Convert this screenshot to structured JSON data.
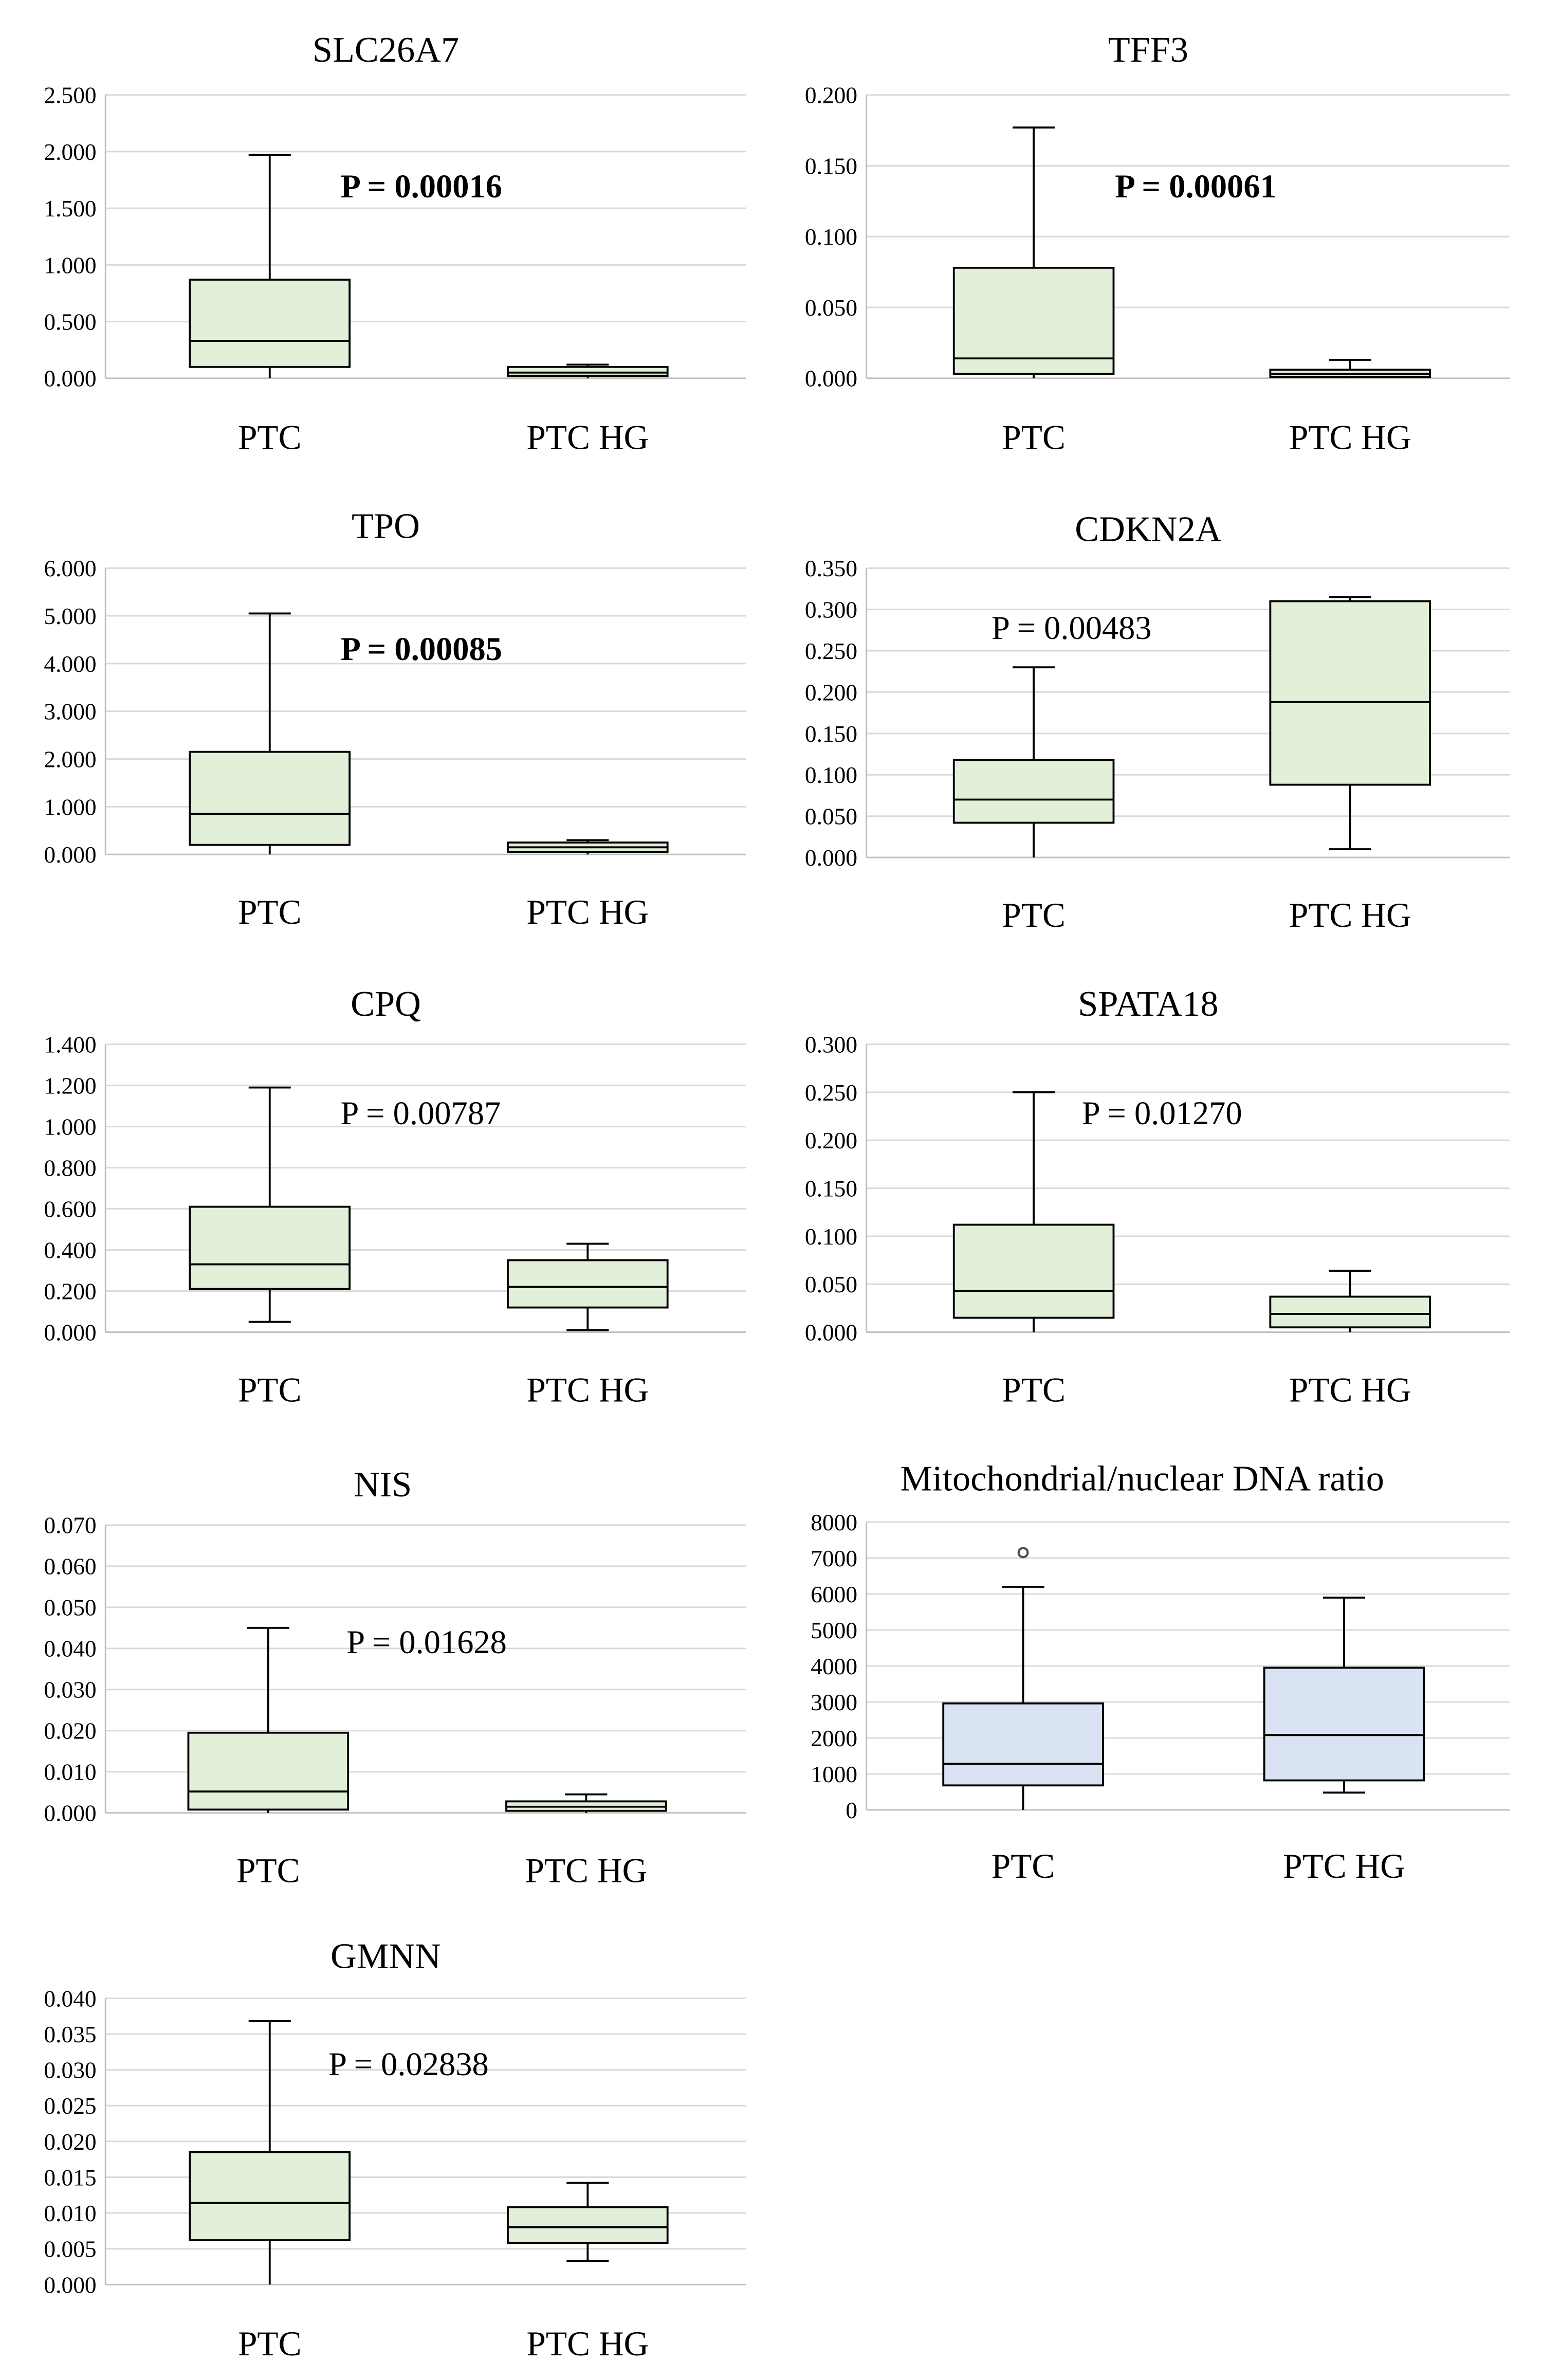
{
  "theme": {
    "green_fill": "#e2f0d9",
    "blue_fill": "#dae3f3",
    "stroke": "#000000",
    "grid": "#d9d9d9"
  },
  "chart_data": [
    {
      "type": "box",
      "title": "SLC26A7",
      "categories": [
        "PTC",
        "PTC HG"
      ],
      "ylim": [
        0,
        2.5
      ],
      "yticks": [
        "0.000",
        "0.500",
        "1.000",
        "1.500",
        "2.000",
        "2.500"
      ],
      "annotation": "P = 0.00016",
      "annotation_bold": true,
      "fill": "green",
      "grid": true,
      "boxes": [
        {
          "min": 0.0,
          "q1": 0.1,
          "median": 0.33,
          "q3": 0.87,
          "max": 1.97,
          "outliers": []
        },
        {
          "min": 0.0,
          "q1": 0.02,
          "median": 0.05,
          "q3": 0.1,
          "max": 0.12,
          "outliers": []
        }
      ]
    },
    {
      "type": "box",
      "title": "TFF3",
      "categories": [
        "PTC",
        "PTC HG"
      ],
      "ylim": [
        0,
        0.2
      ],
      "yticks": [
        "0.000",
        "0.050",
        "0.100",
        "0.150",
        "0.200"
      ],
      "annotation": "P = 0.00061",
      "annotation_bold": true,
      "fill": "green",
      "grid": true,
      "boxes": [
        {
          "min": 0.0,
          "q1": 0.003,
          "median": 0.014,
          "q3": 0.078,
          "max": 0.177,
          "outliers": []
        },
        {
          "min": 0.0,
          "q1": 0.001,
          "median": 0.003,
          "q3": 0.006,
          "max": 0.013,
          "outliers": []
        }
      ]
    },
    {
      "type": "box",
      "title": "TPO",
      "categories": [
        "PTC",
        "PTC HG"
      ],
      "ylim": [
        0,
        6
      ],
      "yticks": [
        "0.000",
        "1.000",
        "2.000",
        "3.000",
        "4.000",
        "5.000",
        "6.000"
      ],
      "annotation": "P = 0.00085",
      "annotation_bold": true,
      "fill": "green",
      "grid": true,
      "boxes": [
        {
          "min": 0.0,
          "q1": 0.2,
          "median": 0.85,
          "q3": 2.15,
          "max": 5.05,
          "outliers": []
        },
        {
          "min": 0.0,
          "q1": 0.05,
          "median": 0.15,
          "q3": 0.25,
          "max": 0.3,
          "outliers": []
        }
      ]
    },
    {
      "type": "box",
      "title": "CDKN2A",
      "categories": [
        "PTC",
        "PTC HG"
      ],
      "ylim": [
        0,
        0.35
      ],
      "yticks": [
        "0.000",
        "0.050",
        "0.100",
        "0.150",
        "0.200",
        "0.250",
        "0.300",
        "0.350"
      ],
      "annotation": "P = 0.00483",
      "annotation_bold": false,
      "fill": "green",
      "grid": true,
      "boxes": [
        {
          "min": 0.0,
          "q1": 0.042,
          "median": 0.07,
          "q3": 0.118,
          "max": 0.23,
          "outliers": []
        },
        {
          "min": 0.01,
          "q1": 0.088,
          "median": 0.188,
          "q3": 0.31,
          "max": 0.315,
          "outliers": []
        }
      ]
    },
    {
      "type": "box",
      "title": "CPQ",
      "categories": [
        "PTC",
        "PTC HG"
      ],
      "ylim": [
        0,
        1.4
      ],
      "yticks": [
        "0.000",
        "0.200",
        "0.400",
        "0.600",
        "0.800",
        "1.000",
        "1.200",
        "1.400"
      ],
      "annotation": "P = 0.00787",
      "annotation_bold": false,
      "fill": "green",
      "grid": true,
      "boxes": [
        {
          "min": 0.05,
          "q1": 0.21,
          "median": 0.33,
          "q3": 0.61,
          "max": 1.19,
          "outliers": []
        },
        {
          "min": 0.01,
          "q1": 0.12,
          "median": 0.22,
          "q3": 0.35,
          "max": 0.43,
          "outliers": []
        }
      ]
    },
    {
      "type": "box",
      "title": "SPATA18",
      "categories": [
        "PTC",
        "PTC HG"
      ],
      "ylim": [
        0,
        0.3
      ],
      "yticks": [
        "0.000",
        "0.050",
        "0.100",
        "0.150",
        "0.200",
        "0.250",
        "0.300"
      ],
      "annotation": "P = 0.01270",
      "annotation_bold": false,
      "fill": "green",
      "grid": true,
      "boxes": [
        {
          "min": 0.0,
          "q1": 0.015,
          "median": 0.043,
          "q3": 0.112,
          "max": 0.25,
          "outliers": []
        },
        {
          "min": 0.0,
          "q1": 0.005,
          "median": 0.019,
          "q3": 0.037,
          "max": 0.064,
          "outliers": []
        }
      ]
    },
    {
      "type": "box",
      "title": "NIS",
      "categories": [
        "PTC",
        "PTC HG"
      ],
      "ylim": [
        0,
        0.07
      ],
      "yticks": [
        "0.000",
        "0.010",
        "0.020",
        "0.030",
        "0.040",
        "0.050",
        "0.060",
        "0.070"
      ],
      "annotation": "P = 0.01628",
      "annotation_bold": false,
      "fill": "green",
      "grid": true,
      "boxes": [
        {
          "min": 0.0,
          "q1": 0.0008,
          "median": 0.0052,
          "q3": 0.0195,
          "max": 0.045,
          "outliers": []
        },
        {
          "min": 0.0,
          "q1": 0.0005,
          "median": 0.0015,
          "q3": 0.0028,
          "max": 0.0045,
          "outliers": []
        }
      ]
    },
    {
      "type": "box",
      "title": "Mitochondrial/nuclear  DNA ratio",
      "categories": [
        "PTC",
        "PTC HG"
      ],
      "ylim": [
        0,
        8000
      ],
      "yticks": [
        "0",
        "1000",
        "2000",
        "3000",
        "4000",
        "5000",
        "6000",
        "7000",
        "8000"
      ],
      "annotation": "",
      "annotation_bold": false,
      "fill": "blue",
      "grid": true,
      "boxes": [
        {
          "min": 0,
          "q1": 680,
          "median": 1280,
          "q3": 2960,
          "max": 6200,
          "outliers": [
            7150
          ]
        },
        {
          "min": 480,
          "q1": 820,
          "median": 2080,
          "q3": 3950,
          "max": 5900,
          "outliers": []
        }
      ]
    },
    {
      "type": "box",
      "title": "GMNN",
      "categories": [
        "PTC",
        "PTC HG"
      ],
      "ylim": [
        0,
        0.04
      ],
      "yticks": [
        "0.000",
        "0.005",
        "0.010",
        "0.015",
        "0.020",
        "0.025",
        "0.030",
        "0.035",
        "0.040"
      ],
      "annotation": "P = 0.02838",
      "annotation_bold": false,
      "fill": "green",
      "grid": true,
      "boxes": [
        {
          "min": 0.0,
          "q1": 0.0062,
          "median": 0.0114,
          "q3": 0.0185,
          "max": 0.0368,
          "outliers": []
        },
        {
          "min": 0.0033,
          "q1": 0.0058,
          "median": 0.008,
          "q3": 0.0108,
          "max": 0.0142,
          "outliers": []
        }
      ]
    }
  ]
}
